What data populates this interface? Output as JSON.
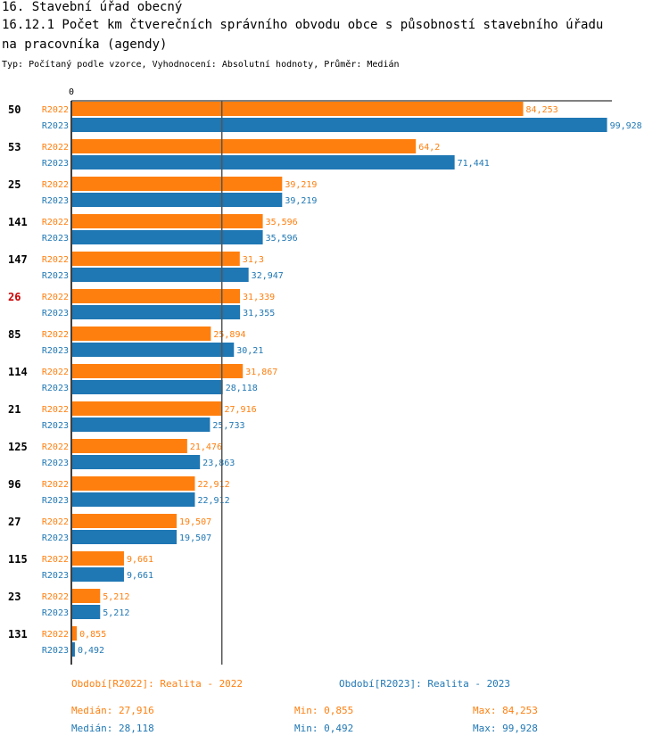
{
  "header": {
    "title_line1": "16. Stavební úřad obecný",
    "title_line2": "16.12.1 Počet km čtverečních správního obvodu obce s působností stavebního úřadu",
    "title_line3": "na pracovníka (agendy)",
    "subtitle": "Typ: Počítaný podle vzorce, Vyhodnocení: Absolutní hodnoty, Průměr: Medián"
  },
  "colors": {
    "r2022": "#ff7f0e",
    "r2023": "#1f77b4",
    "highlight": "#cc0000",
    "median_line": "#555555"
  },
  "chart_data": {
    "type": "bar",
    "orientation": "horizontal",
    "axis_zero_label": "0",
    "xlim": [
      0,
      100
    ],
    "categories": [
      "50",
      "53",
      "25",
      "141",
      "147",
      "26",
      "85",
      "114",
      "21",
      "125",
      "96",
      "27",
      "115",
      "23",
      "131"
    ],
    "highlighted_category": "26",
    "series": [
      {
        "name": "R2022",
        "values": [
          84.253,
          64.2,
          39.219,
          35.596,
          31.3,
          31.339,
          25.894,
          31.867,
          27.916,
          21.476,
          22.912,
          19.507,
          9.661,
          5.212,
          0.855
        ],
        "labels": [
          "84,253",
          "64,2",
          "39,219",
          "35,596",
          "31,3",
          "31,339",
          "25,894",
          "31,867",
          "27,916",
          "21,476",
          "22,912",
          "19,507",
          "9,661",
          "5,212",
          "0,855"
        ]
      },
      {
        "name": "R2023",
        "values": [
          99.928,
          71.441,
          39.219,
          35.596,
          32.947,
          31.355,
          30.21,
          28.118,
          25.733,
          23.863,
          22.912,
          19.507,
          9.661,
          5.212,
          0.492
        ],
        "labels": [
          "99,928",
          "71,441",
          "39,219",
          "35,596",
          "32,947",
          "31,355",
          "30,21",
          "28,118",
          "25,733",
          "23,863",
          "22,912",
          "19,507",
          "9,661",
          "5,212",
          "0,492"
        ]
      }
    ],
    "median_line_value": 28.118
  },
  "legend": {
    "r2022": "Období[R2022]: Realita - 2022",
    "r2023": "Období[R2023]: Realita - 2023"
  },
  "stats": {
    "r2022": {
      "median": "Medián: 27,916",
      "min": "Min: 0,855",
      "max": "Max: 84,253"
    },
    "r2023": {
      "median": "Medián: 28,118",
      "min": "Min: 0,492",
      "max": "Max: 99,928"
    }
  }
}
